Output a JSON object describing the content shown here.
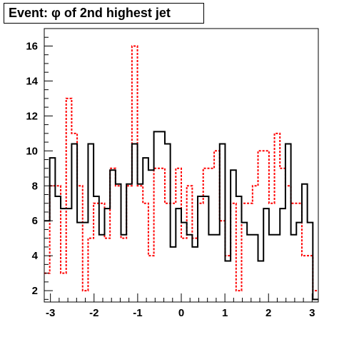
{
  "chart_data": {
    "type": "histogram",
    "title": "Event: φ of 2nd highest jet",
    "xlabel": "",
    "ylabel": "",
    "xlim": [
      -3.1416,
      3.1416
    ],
    "ylim": [
      1.35,
      17.0
    ],
    "bins": 50,
    "x_ticks": [
      -3,
      -2,
      -1,
      0,
      1,
      2,
      3
    ],
    "y_ticks": [
      2,
      4,
      6,
      8,
      10,
      12,
      14,
      16
    ],
    "grid": false,
    "series": [
      {
        "style": "solid",
        "color": "#000000",
        "values": [
          6,
          9.6,
          7.4,
          6.7,
          6.7,
          10.4,
          5.9,
          5.9,
          10.4,
          7.4,
          5.2,
          6.7,
          8.9,
          8.1,
          5.2,
          8.1,
          10.4,
          8.1,
          9.6,
          8.9,
          11.1,
          11.1,
          10.4,
          4.5,
          6.7,
          5.9,
          5.2,
          4.5,
          7.4,
          7.4,
          5.2,
          5.2,
          10.4,
          3.7,
          8.9,
          7.4,
          5.9,
          5.2,
          5.2,
          3.7,
          6.7,
          5.2,
          5.2,
          6.7,
          10.4,
          5.2,
          5.9,
          8.1,
          5.9,
          1.5
        ]
      },
      {
        "style": "dashed",
        "color": "#ff0000",
        "values": [
          3,
          8,
          8,
          3,
          13,
          11,
          8,
          2,
          5,
          7,
          7,
          5,
          9,
          8,
          5,
          8,
          16,
          8,
          7,
          4,
          9,
          9,
          7,
          7,
          9,
          5,
          8,
          5,
          7,
          9,
          9,
          10,
          6,
          4,
          7,
          2,
          7,
          7,
          8,
          10,
          10,
          7,
          11,
          9,
          8,
          7,
          7,
          4,
          4,
          2
        ]
      }
    ]
  }
}
